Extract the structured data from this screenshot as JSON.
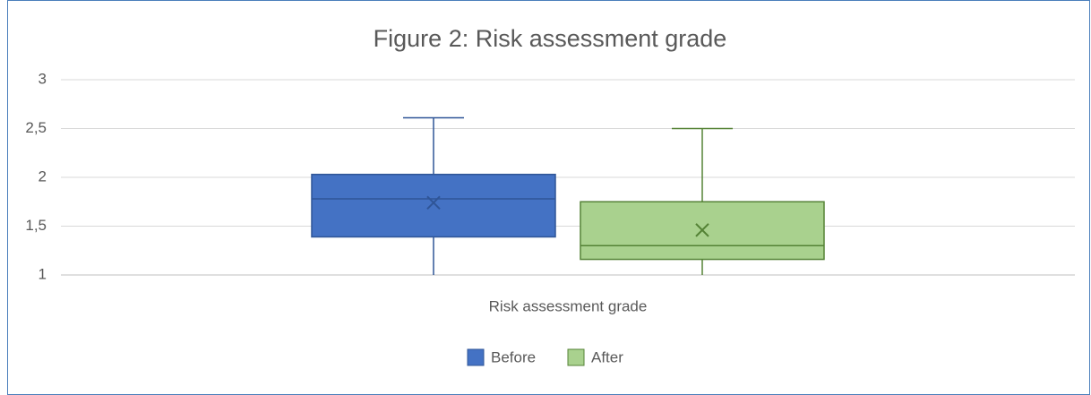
{
  "chart_data": {
    "type": "box",
    "title": "Figure 2: Risk assessment grade",
    "categories": [
      "Risk assessment grade"
    ],
    "series": [
      {
        "name": "Before",
        "color": "#4472c4",
        "stroke": "#2f5597",
        "min": 1,
        "q1": 1.39,
        "median": 1.78,
        "q3": 2.03,
        "max": 2.61,
        "mean": 1.74
      },
      {
        "name": "After",
        "color": "#a9d18e",
        "stroke": "#548235",
        "min": 1,
        "q1": 1.16,
        "median": 1.3,
        "q3": 1.75,
        "max": 2.5,
        "mean": 1.46
      }
    ],
    "ylim": [
      1,
      3
    ],
    "yticks": [
      1,
      {
        "value": 1.5,
        "label": "1,5"
      },
      2,
      {
        "value": 2.5,
        "label": "2,5"
      },
      3
    ],
    "grid": true,
    "legend": "bottom"
  }
}
